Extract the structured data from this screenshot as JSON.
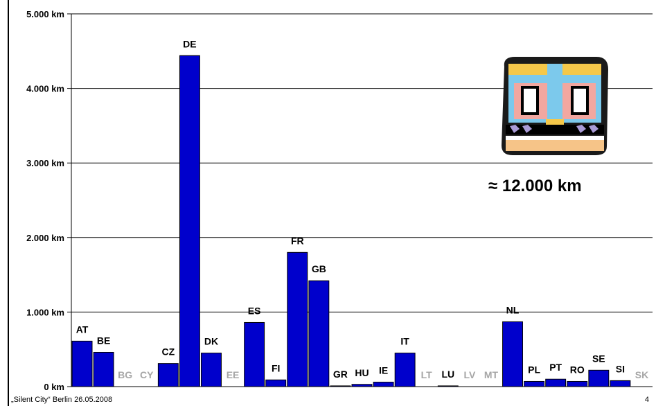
{
  "chart_data": {
    "type": "bar",
    "ylim": [
      0,
      5000
    ],
    "grid": true,
    "legend": "none",
    "bar_color": "#0000CC",
    "label_color_dark": "#000000",
    "label_color_muted": "#A6A6A6",
    "y_ticks": [
      {
        "value": 0,
        "label": "0 km"
      },
      {
        "value": 1000,
        "label": "1.000 km"
      },
      {
        "value": 2000,
        "label": "2.000 km"
      },
      {
        "value": 3000,
        "label": "3.000 km"
      },
      {
        "value": 4000,
        "label": "4.000 km"
      },
      {
        "value": 5000,
        "label": "5.000 km"
      }
    ],
    "categories": [
      "AT",
      "BE",
      "BG",
      "CY",
      "CZ",
      "DE",
      "DK",
      "EE",
      "ES",
      "FI",
      "FR",
      "GB",
      "GR",
      "HU",
      "IE",
      "IT",
      "LT",
      "LU",
      "LV",
      "MT",
      "NL",
      "PL",
      "PT",
      "RO",
      "SE",
      "SI",
      "SK"
    ],
    "values": [
      610,
      460,
      0,
      0,
      310,
      4440,
      450,
      0,
      860,
      90,
      1800,
      1420,
      10,
      30,
      60,
      450,
      0,
      10,
      0,
      0,
      870,
      70,
      100,
      70,
      220,
      80,
      0
    ],
    "muted": [
      "BG",
      "CY",
      "EE",
      "LT",
      "LV",
      "MT",
      "SK"
    ]
  },
  "annotation": {
    "total_label": "≈ 12.000 km",
    "image": "tram-front-clipart"
  },
  "footer": {
    "left": "„Silent City“ Berlin 26.05.2008",
    "right": "4"
  }
}
